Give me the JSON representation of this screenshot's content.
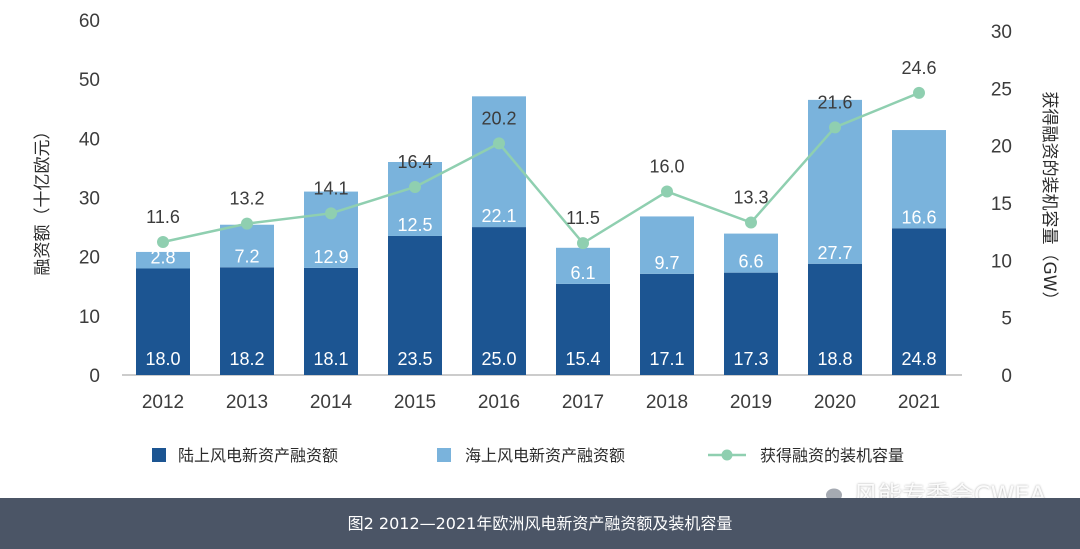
{
  "chart_data": {
    "type": "bar",
    "stacked": true,
    "categories": [
      "2012",
      "2013",
      "2014",
      "2015",
      "2016",
      "2017",
      "2018",
      "2019",
      "2020",
      "2021"
    ],
    "series": [
      {
        "name": "陆上风电新资产融资额",
        "type": "bar",
        "axis": "left",
        "color": "#1c5592",
        "values": [
          18.0,
          18.2,
          18.1,
          23.5,
          25.0,
          15.4,
          17.1,
          17.3,
          18.8,
          24.8
        ],
        "labels": [
          "18.0",
          "18.2",
          "18.1",
          "23.5",
          "25.0",
          "15.4",
          "17.1",
          "17.3",
          "18.8",
          "24.8"
        ]
      },
      {
        "name": "海上风电新资产融资额",
        "type": "bar",
        "axis": "left",
        "color": "#7ab3dc",
        "values": [
          2.8,
          7.2,
          12.9,
          12.5,
          22.1,
          6.1,
          9.7,
          6.6,
          27.7,
          16.6
        ],
        "labels": [
          "2.8",
          "7.2",
          "12.9",
          "12.5",
          "22.1",
          "6.1",
          "9.7",
          "6.6",
          "27.7",
          "16.6"
        ]
      },
      {
        "name": "获得融资的装机容量",
        "type": "line",
        "axis": "right",
        "color": "#8fcfb0",
        "values": [
          11.6,
          13.2,
          14.1,
          16.4,
          20.2,
          11.5,
          16.0,
          13.3,
          21.6,
          24.6
        ],
        "labels": [
          "11.6",
          "13.2",
          "14.1",
          "16.4",
          "20.2",
          "11.5",
          "16.0",
          "13.3",
          "21.6",
          "24.6"
        ]
      }
    ],
    "ylabel": "融资额（十亿欧元）",
    "y2label": "获得融资的装机容量（GW）",
    "ylim": [
      0,
      60
    ],
    "y2lim": [
      0,
      30
    ],
    "yticks": [
      "0",
      "10",
      "20",
      "30",
      "40",
      "50",
      "60"
    ],
    "y2ticks": [
      "0",
      "5",
      "10",
      "15",
      "20",
      "25",
      "30"
    ],
    "legend_position": "bottom",
    "grid": false
  },
  "caption": "图2 2012—2021年欧洲风电新资产融资额及装机容量",
  "watermark": {
    "text": "风能专委会CWEA",
    "icon": "wechat-icon"
  }
}
